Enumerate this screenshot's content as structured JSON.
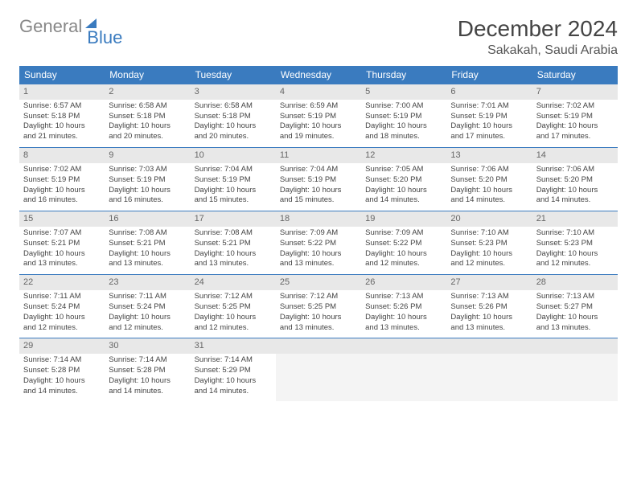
{
  "logo": {
    "part1": "General",
    "part2": "Blue"
  },
  "title": "December 2024",
  "location": "Sakakah, Saudi Arabia",
  "colors": {
    "header_bg": "#3a7bbf",
    "header_text": "#ffffff",
    "daynum_bg": "#e8e8e8",
    "border": "#3a7bbf",
    "empty_bg": "#f4f4f4"
  },
  "weekdays": [
    "Sunday",
    "Monday",
    "Tuesday",
    "Wednesday",
    "Thursday",
    "Friday",
    "Saturday"
  ],
  "weeks": [
    [
      {
        "n": "1",
        "sr": "Sunrise: 6:57 AM",
        "ss": "Sunset: 5:18 PM",
        "d1": "Daylight: 10 hours",
        "d2": "and 21 minutes."
      },
      {
        "n": "2",
        "sr": "Sunrise: 6:58 AM",
        "ss": "Sunset: 5:18 PM",
        "d1": "Daylight: 10 hours",
        "d2": "and 20 minutes."
      },
      {
        "n": "3",
        "sr": "Sunrise: 6:58 AM",
        "ss": "Sunset: 5:18 PM",
        "d1": "Daylight: 10 hours",
        "d2": "and 20 minutes."
      },
      {
        "n": "4",
        "sr": "Sunrise: 6:59 AM",
        "ss": "Sunset: 5:19 PM",
        "d1": "Daylight: 10 hours",
        "d2": "and 19 minutes."
      },
      {
        "n": "5",
        "sr": "Sunrise: 7:00 AM",
        "ss": "Sunset: 5:19 PM",
        "d1": "Daylight: 10 hours",
        "d2": "and 18 minutes."
      },
      {
        "n": "6",
        "sr": "Sunrise: 7:01 AM",
        "ss": "Sunset: 5:19 PM",
        "d1": "Daylight: 10 hours",
        "d2": "and 17 minutes."
      },
      {
        "n": "7",
        "sr": "Sunrise: 7:02 AM",
        "ss": "Sunset: 5:19 PM",
        "d1": "Daylight: 10 hours",
        "d2": "and 17 minutes."
      }
    ],
    [
      {
        "n": "8",
        "sr": "Sunrise: 7:02 AM",
        "ss": "Sunset: 5:19 PM",
        "d1": "Daylight: 10 hours",
        "d2": "and 16 minutes."
      },
      {
        "n": "9",
        "sr": "Sunrise: 7:03 AM",
        "ss": "Sunset: 5:19 PM",
        "d1": "Daylight: 10 hours",
        "d2": "and 16 minutes."
      },
      {
        "n": "10",
        "sr": "Sunrise: 7:04 AM",
        "ss": "Sunset: 5:19 PM",
        "d1": "Daylight: 10 hours",
        "d2": "and 15 minutes."
      },
      {
        "n": "11",
        "sr": "Sunrise: 7:04 AM",
        "ss": "Sunset: 5:19 PM",
        "d1": "Daylight: 10 hours",
        "d2": "and 15 minutes."
      },
      {
        "n": "12",
        "sr": "Sunrise: 7:05 AM",
        "ss": "Sunset: 5:20 PM",
        "d1": "Daylight: 10 hours",
        "d2": "and 14 minutes."
      },
      {
        "n": "13",
        "sr": "Sunrise: 7:06 AM",
        "ss": "Sunset: 5:20 PM",
        "d1": "Daylight: 10 hours",
        "d2": "and 14 minutes."
      },
      {
        "n": "14",
        "sr": "Sunrise: 7:06 AM",
        "ss": "Sunset: 5:20 PM",
        "d1": "Daylight: 10 hours",
        "d2": "and 14 minutes."
      }
    ],
    [
      {
        "n": "15",
        "sr": "Sunrise: 7:07 AM",
        "ss": "Sunset: 5:21 PM",
        "d1": "Daylight: 10 hours",
        "d2": "and 13 minutes."
      },
      {
        "n": "16",
        "sr": "Sunrise: 7:08 AM",
        "ss": "Sunset: 5:21 PM",
        "d1": "Daylight: 10 hours",
        "d2": "and 13 minutes."
      },
      {
        "n": "17",
        "sr": "Sunrise: 7:08 AM",
        "ss": "Sunset: 5:21 PM",
        "d1": "Daylight: 10 hours",
        "d2": "and 13 minutes."
      },
      {
        "n": "18",
        "sr": "Sunrise: 7:09 AM",
        "ss": "Sunset: 5:22 PM",
        "d1": "Daylight: 10 hours",
        "d2": "and 13 minutes."
      },
      {
        "n": "19",
        "sr": "Sunrise: 7:09 AM",
        "ss": "Sunset: 5:22 PM",
        "d1": "Daylight: 10 hours",
        "d2": "and 12 minutes."
      },
      {
        "n": "20",
        "sr": "Sunrise: 7:10 AM",
        "ss": "Sunset: 5:23 PM",
        "d1": "Daylight: 10 hours",
        "d2": "and 12 minutes."
      },
      {
        "n": "21",
        "sr": "Sunrise: 7:10 AM",
        "ss": "Sunset: 5:23 PM",
        "d1": "Daylight: 10 hours",
        "d2": "and 12 minutes."
      }
    ],
    [
      {
        "n": "22",
        "sr": "Sunrise: 7:11 AM",
        "ss": "Sunset: 5:24 PM",
        "d1": "Daylight: 10 hours",
        "d2": "and 12 minutes."
      },
      {
        "n": "23",
        "sr": "Sunrise: 7:11 AM",
        "ss": "Sunset: 5:24 PM",
        "d1": "Daylight: 10 hours",
        "d2": "and 12 minutes."
      },
      {
        "n": "24",
        "sr": "Sunrise: 7:12 AM",
        "ss": "Sunset: 5:25 PM",
        "d1": "Daylight: 10 hours",
        "d2": "and 12 minutes."
      },
      {
        "n": "25",
        "sr": "Sunrise: 7:12 AM",
        "ss": "Sunset: 5:25 PM",
        "d1": "Daylight: 10 hours",
        "d2": "and 13 minutes."
      },
      {
        "n": "26",
        "sr": "Sunrise: 7:13 AM",
        "ss": "Sunset: 5:26 PM",
        "d1": "Daylight: 10 hours",
        "d2": "and 13 minutes."
      },
      {
        "n": "27",
        "sr": "Sunrise: 7:13 AM",
        "ss": "Sunset: 5:26 PM",
        "d1": "Daylight: 10 hours",
        "d2": "and 13 minutes."
      },
      {
        "n": "28",
        "sr": "Sunrise: 7:13 AM",
        "ss": "Sunset: 5:27 PM",
        "d1": "Daylight: 10 hours",
        "d2": "and 13 minutes."
      }
    ],
    [
      {
        "n": "29",
        "sr": "Sunrise: 7:14 AM",
        "ss": "Sunset: 5:28 PM",
        "d1": "Daylight: 10 hours",
        "d2": "and 14 minutes."
      },
      {
        "n": "30",
        "sr": "Sunrise: 7:14 AM",
        "ss": "Sunset: 5:28 PM",
        "d1": "Daylight: 10 hours",
        "d2": "and 14 minutes."
      },
      {
        "n": "31",
        "sr": "Sunrise: 7:14 AM",
        "ss": "Sunset: 5:29 PM",
        "d1": "Daylight: 10 hours",
        "d2": "and 14 minutes."
      },
      {
        "empty": true
      },
      {
        "empty": true
      },
      {
        "empty": true
      },
      {
        "empty": true
      }
    ]
  ]
}
